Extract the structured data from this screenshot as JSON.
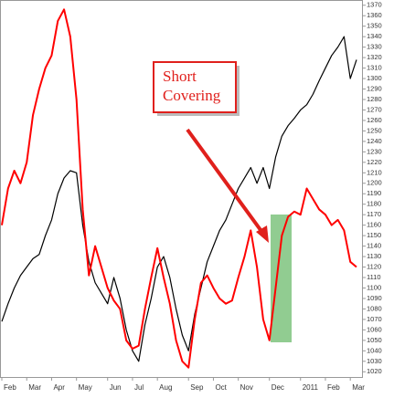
{
  "chart_data": {
    "type": "line",
    "annotation_lines": [
      "Short",
      "Covering"
    ],
    "categories": [
      "Feb",
      null,
      null,
      null,
      "Mar",
      null,
      null,
      null,
      "Apr",
      null,
      null,
      null,
      "May",
      null,
      null,
      null,
      null,
      "Jun",
      null,
      null,
      null,
      "Jul",
      null,
      null,
      null,
      "Aug",
      null,
      null,
      null,
      null,
      "Sep",
      null,
      null,
      null,
      "Oct",
      null,
      null,
      null,
      "Nov",
      null,
      null,
      null,
      null,
      "Dec",
      null,
      null,
      null,
      null,
      "2011",
      null,
      null,
      null,
      "Feb",
      null,
      null,
      null,
      "Mar",
      null
    ],
    "series": [
      {
        "color": "#000000",
        "values": [
          1068,
          1085,
          1100,
          1112,
          1120,
          1128,
          1132,
          1150,
          1165,
          1190,
          1205,
          1212,
          1210,
          1160,
          1125,
          1105,
          1095,
          1085,
          1110,
          1090,
          1060,
          1040,
          1030,
          1065,
          1090,
          1120,
          1130,
          1110,
          1080,
          1055,
          1040,
          1075,
          1100,
          1125,
          1140,
          1155,
          1165,
          1180,
          1195,
          1205,
          1215,
          1200,
          1215,
          1195,
          1225,
          1245,
          1255,
          1262,
          1270,
          1275,
          1285,
          1298,
          1310,
          1322,
          1330,
          1340,
          1300,
          1318
        ]
      },
      {
        "color": "#ff0000",
        "values": [
          1160,
          1195,
          1212,
          1200,
          1220,
          1265,
          1290,
          1310,
          1322,
          1355,
          1366,
          1340,
          1280,
          1175,
          1112,
          1140,
          1120,
          1100,
          1088,
          1080,
          1050,
          1042,
          1045,
          1080,
          1110,
          1138,
          1110,
          1085,
          1050,
          1030,
          1024,
          1070,
          1105,
          1112,
          1100,
          1090,
          1085,
          1088,
          1110,
          1130,
          1155,
          1120,
          1070,
          1050,
          1100,
          1150,
          1168,
          1173,
          1170,
          1195,
          1185,
          1175,
          1170,
          1160,
          1165,
          1155,
          1125,
          1120
        ]
      }
    ],
    "ylim": [
      1015,
      1375
    ],
    "yticks": [
      1020,
      1030,
      1040,
      1050,
      1060,
      1070,
      1080,
      1090,
      1100,
      1110,
      1120,
      1130,
      1140,
      1150,
      1160,
      1170,
      1180,
      1190,
      1200,
      1210,
      1220,
      1230,
      1240,
      1250,
      1260,
      1270,
      1280,
      1290,
      1300,
      1310,
      1320,
      1330,
      1340,
      1350,
      1360,
      1370
    ],
    "grid": false
  }
}
